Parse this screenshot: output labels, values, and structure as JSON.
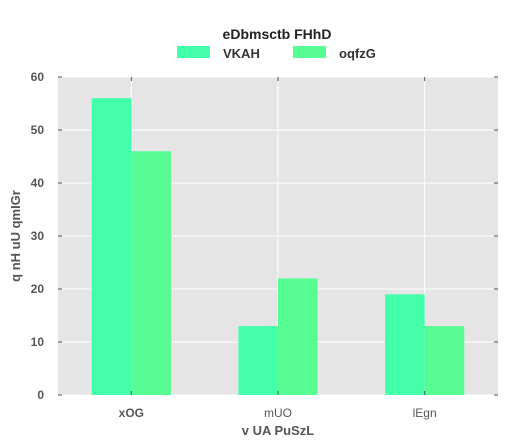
{
  "chart_data": {
    "type": "bar",
    "legend_title": "eDbmsctb  FHhD",
    "legend_position": "top-center",
    "categories": [
      "xOG",
      "mUO",
      "lEgn"
    ],
    "category_label_bold": [
      true,
      false,
      false
    ],
    "series": [
      {
        "name": "VKAH",
        "values": [
          56,
          13,
          19
        ],
        "color": "#43ffaa"
      },
      {
        "name": "oqfzG",
        "values": [
          46,
          22,
          13
        ],
        "color": "#57fd93"
      }
    ],
    "xlabel": "v UA PuSzL",
    "ylabel": "q nH uU qmIGr",
    "ylim": [
      0,
      60
    ],
    "yticks": [
      "0",
      "10",
      "20",
      "30",
      "40",
      "50",
      "60"
    ],
    "grid": true,
    "background": "#e5e5e5",
    "grid_color": "#ffffff"
  }
}
